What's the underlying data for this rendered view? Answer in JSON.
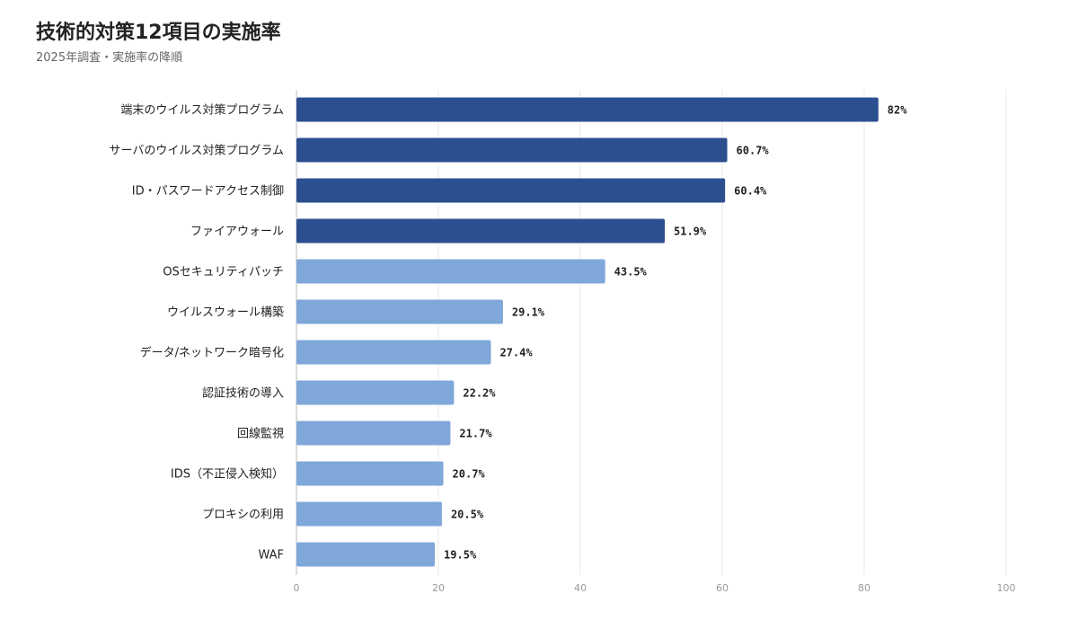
{
  "title": "技術的対策12項目の実施率",
  "subtitle": "2025年調査・実施率の降順",
  "chart_data": {
    "type": "bar",
    "orientation": "horizontal",
    "title": "技術的対策12項目の実施率",
    "subtitle": "2025年調査・実施率の降順",
    "xlabel": "",
    "ylabel": "",
    "xlim": [
      0,
      100
    ],
    "xticks": [
      0,
      20,
      40,
      60,
      80,
      100
    ],
    "grid": true,
    "categories": [
      "端末のウイルス対策プログラム",
      "サーバのウイルス対策プログラム",
      "ID・パスワードアクセス制御",
      "ファイアウォール",
      "OSセキュリティパッチ",
      "ウイルスウォール構築",
      "データ/ネットワーク暗号化",
      "認証技術の導入",
      "回線監視",
      "IDS（不正侵入検知）",
      "プロキシの利用",
      "WAF"
    ],
    "values": [
      82,
      60.7,
      60.4,
      51.9,
      43.5,
      29.1,
      27.4,
      22.2,
      21.7,
      20.7,
      20.5,
      19.5
    ],
    "value_labels": [
      "82%",
      "60.7%",
      "60.4%",
      "51.9%",
      "43.5%",
      "29.1%",
      "27.4%",
      "22.2%",
      "21.7%",
      "20.7%",
      "20.5%",
      "19.5%"
    ],
    "colors": {
      "top": "#2c4f8f",
      "rest": "#7fa7d9",
      "grid": "#e8e8e8",
      "axis": "#bbbbbb"
    },
    "highlight_count": 4
  }
}
